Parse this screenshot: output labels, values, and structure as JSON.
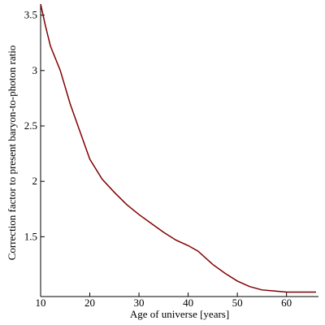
{
  "chart_data": {
    "type": "line",
    "x_label": "Age of universe [years]",
    "y_label": "Correction factor to present baryon-to-photon ratio",
    "x": [
      10,
      11,
      12,
      14,
      16,
      18,
      20,
      22.5,
      25,
      27.5,
      30,
      32.5,
      35,
      37.5,
      40,
      42,
      45,
      47.5,
      50,
      52.5,
      55,
      57.5,
      60,
      62.5,
      66
    ],
    "series": [
      {
        "name": "correction factor",
        "color": "#800000",
        "values": [
          3.6,
          3.4,
          3.22,
          3.0,
          2.7,
          2.45,
          2.2,
          2.02,
          1.9,
          1.79,
          1.7,
          1.62,
          1.54,
          1.47,
          1.42,
          1.37,
          1.25,
          1.17,
          1.1,
          1.05,
          1.02,
          1.01,
          1.0,
          1.0,
          1.0
        ]
      }
    ],
    "xlim": [
      10,
      66.5
    ],
    "ylim": [
      0.96,
      3.6
    ],
    "xticks": [
      10,
      20,
      30,
      40,
      50,
      60
    ],
    "yticks": [
      1.5,
      2,
      2.5,
      3,
      3.5
    ]
  }
}
